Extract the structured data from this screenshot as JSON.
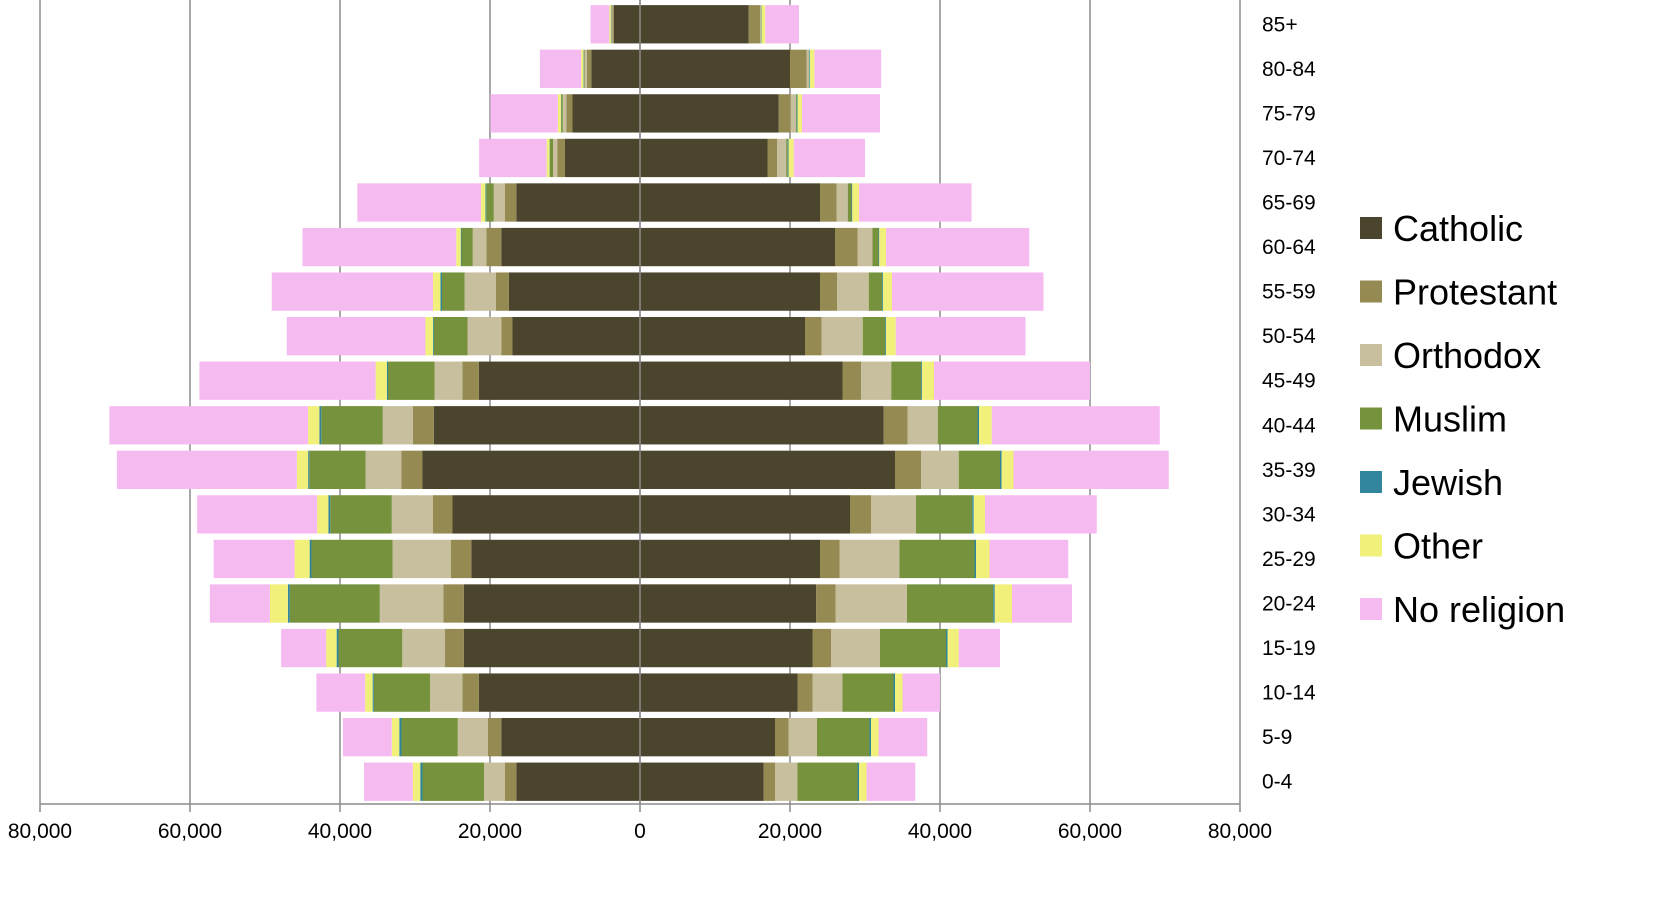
{
  "chart_data": {
    "type": "bar",
    "orientation": "horizontal",
    "stacking": "diverging-stacked",
    "title": "",
    "xlabel": "",
    "ylabel": "",
    "xlim": [
      -80000,
      80000
    ],
    "x_ticks": [
      -80000,
      -60000,
      -40000,
      -20000,
      0,
      20000,
      40000,
      60000,
      80000
    ],
    "x_tick_labels": [
      "80,000",
      "60,000",
      "40,000",
      "20,000",
      "0",
      "20,000",
      "40,000",
      "60,000",
      "80,000"
    ],
    "grid": "vertical",
    "legend_position": "right",
    "categories": [
      "0-4",
      "5-9",
      "10-14",
      "15-19",
      "20-24",
      "25-29",
      "30-34",
      "35-39",
      "40-44",
      "45-49",
      "50-54",
      "55-59",
      "60-64",
      "65-69",
      "70-74",
      "75-79",
      "80-84",
      "85+"
    ],
    "series": [
      {
        "name": "Catholic",
        "color": "#4b452d",
        "left": [
          16500,
          18500,
          21500,
          23500,
          23500,
          22500,
          25000,
          29000,
          27500,
          21500,
          17000,
          17500,
          18500,
          16500,
          10000,
          9000,
          6500,
          3500
        ],
        "right": [
          16500,
          18000,
          21000,
          23000,
          23500,
          24000,
          28000,
          34000,
          32500,
          27000,
          22000,
          24000,
          26000,
          24000,
          17000,
          18500,
          20000,
          14500
        ]
      },
      {
        "name": "Protestant",
        "color": "#958a52",
        "left": [
          1500,
          1800,
          2200,
          2500,
          2700,
          2700,
          2600,
          2800,
          2800,
          2200,
          1500,
          1700,
          2000,
          1500,
          1000,
          800,
          600,
          200
        ],
        "right": [
          1500,
          1800,
          2000,
          2500,
          2600,
          2600,
          2800,
          3500,
          3200,
          2500,
          2200,
          2300,
          3000,
          2200,
          1300,
          1600,
          2200,
          1500
        ]
      },
      {
        "name": "Orthodox",
        "color": "#c8bf9e",
        "left": [
          2800,
          4000,
          4300,
          5700,
          8500,
          7800,
          5500,
          4800,
          4000,
          3700,
          4500,
          4200,
          1800,
          1500,
          600,
          500,
          300,
          100
        ],
        "right": [
          3000,
          3800,
          4000,
          6500,
          9500,
          8000,
          6000,
          5000,
          4000,
          4000,
          5500,
          4200,
          2000,
          1500,
          1200,
          700,
          300,
          100
        ]
      },
      {
        "name": "Muslim",
        "color": "#76923c",
        "left": [
          8200,
          7500,
          7500,
          8500,
          12000,
          10800,
          8200,
          7500,
          8200,
          6200,
          4500,
          3000,
          1500,
          1000,
          400,
          200,
          100,
          50
        ],
        "right": [
          8000,
          7000,
          6800,
          8800,
          11500,
          10000,
          7500,
          5500,
          5300,
          4000,
          3000,
          1800,
          800,
          500,
          200,
          100,
          50,
          50
        ]
      },
      {
        "name": "Jewish",
        "color": "#31859c",
        "left": [
          300,
          300,
          150,
          250,
          250,
          250,
          250,
          150,
          250,
          150,
          100,
          200,
          100,
          100,
          50,
          50,
          50,
          50
        ],
        "right": [
          200,
          200,
          200,
          200,
          200,
          200,
          200,
          200,
          200,
          100,
          100,
          100,
          100,
          100,
          100,
          100,
          100,
          50
        ]
      },
      {
        "name": "Other",
        "color": "#f0f07a",
        "left": [
          1000,
          1000,
          1000,
          1400,
          2400,
          2000,
          1500,
          1500,
          1500,
          1500,
          1000,
          1000,
          600,
          600,
          400,
          400,
          300,
          200
        ],
        "right": [
          1000,
          1000,
          1000,
          1500,
          2300,
          1800,
          1500,
          1600,
          1700,
          1600,
          1300,
          1200,
          900,
          900,
          700,
          600,
          600,
          500
        ]
      },
      {
        "name": "No religion",
        "color": "#f5bbf0",
        "left": [
          6500,
          6500,
          6500,
          6000,
          8000,
          10800,
          16000,
          24000,
          26500,
          23500,
          18500,
          21500,
          20500,
          16500,
          9000,
          9000,
          5500,
          2500
        ],
        "right": [
          6500,
          6500,
          5000,
          5500,
          8000,
          10500,
          14900,
          20700,
          22400,
          20800,
          17300,
          20200,
          19100,
          15000,
          9500,
          10400,
          8900,
          4500
        ]
      }
    ]
  }
}
